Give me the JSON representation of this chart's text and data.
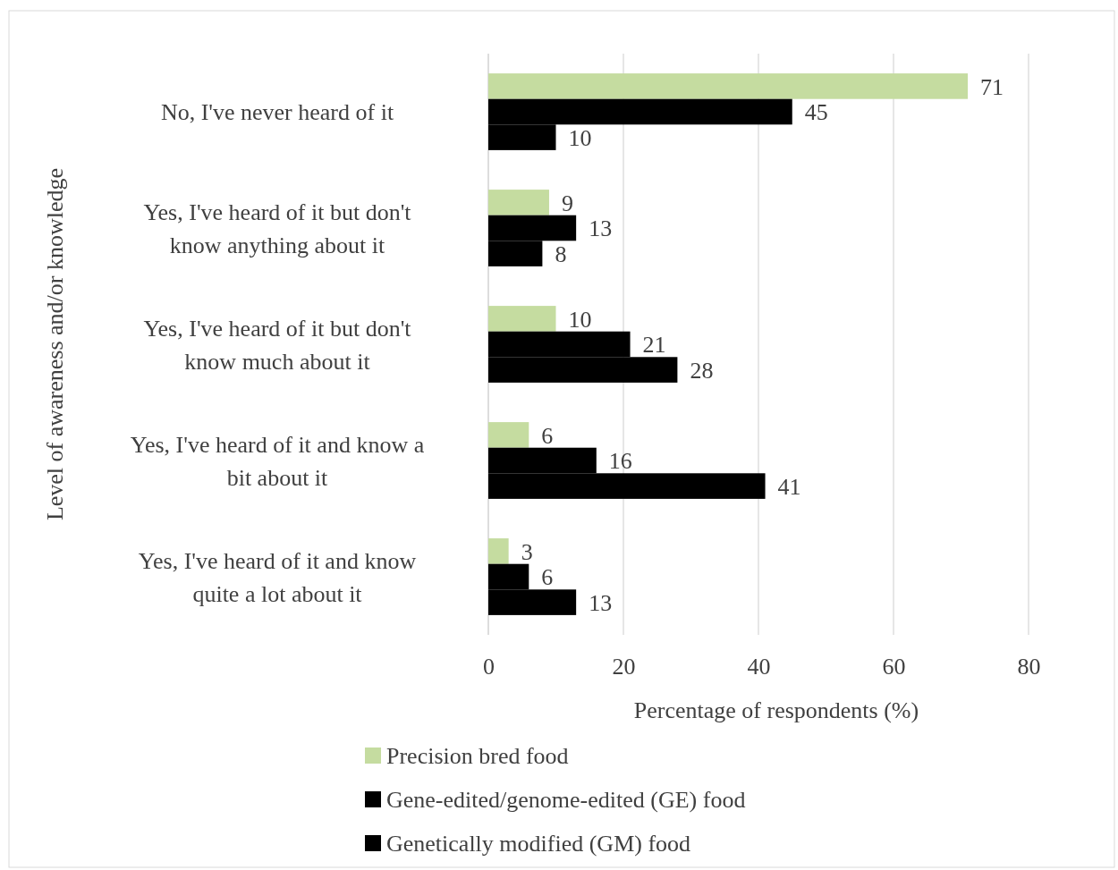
{
  "chart_data": {
    "type": "bar",
    "orientation": "horizontal",
    "xlabel": "Percentage of respondents (%)",
    "ylabel": "Level of awareness and/or knowledge",
    "categories": [
      "No, I've never heard of it",
      "Yes, I've heard of it but don't know anything about it",
      "Yes, I've heard of it but don't know much about it",
      "Yes, I've heard of it and know a bit about it",
      "Yes, I've heard of it and know quite a lot about it"
    ],
    "series": [
      {
        "name": "Precision bred food",
        "color": "#c5dca0",
        "values": [
          71,
          9,
          10,
          6,
          3
        ]
      },
      {
        "name": "Gene-edited/genome-edited (GE) food",
        "color": "#000000",
        "values": [
          45,
          13,
          21,
          16,
          6
        ]
      },
      {
        "name": "Genetically modified (GM) food",
        "color": "#000000",
        "values": [
          10,
          8,
          28,
          41,
          13
        ]
      }
    ],
    "xlim": [
      0,
      80
    ],
    "xticks": [
      0,
      20,
      40,
      60,
      80
    ],
    "grid": "x",
    "legend": "bottom",
    "data_labels": true
  }
}
